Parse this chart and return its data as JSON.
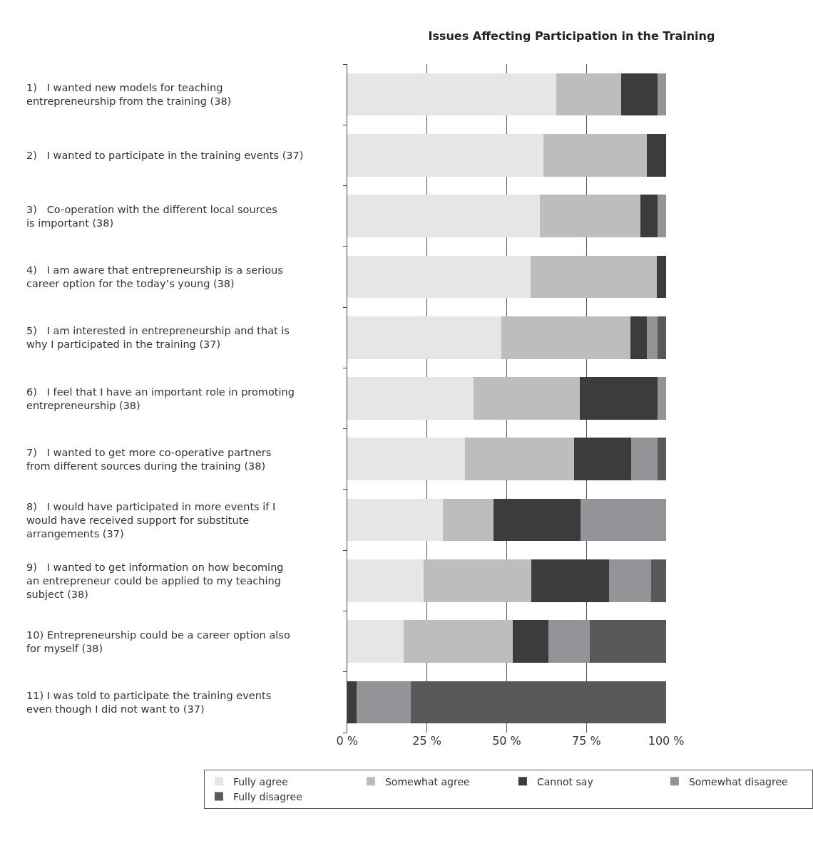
{
  "chart_data": {
    "type": "bar",
    "orientation": "horizontal",
    "stacked": true,
    "title": "Issues Affecting Participation in the Training",
    "categories": [
      "1)   I wanted new models for teaching\nentrepreneurship from the training (38)",
      "2)   I wanted to participate in the training events (37)",
      "3)   Co-operation with the different local sources\nis important (38)",
      "4)   I am aware that entrepreneurship is a serious\ncareer option for the today’s young (38)",
      "5)   I am interested in entrepreneurship and that is\nwhy I participated in the training (37)",
      "6)   I feel that I have an important role in promoting\nentrepreneurship (38)",
      "7)   I wanted to get more co-operative partners\nfrom different sources during the training (38)",
      "8)   I would have participated in more events if I\nwould have received support for substitute\narrangements (37)",
      "9)   I wanted to get information on how becoming\nan entrepreneur could be applied to my teaching\nsubject (38)",
      "10) Entrepreneurship could be a career option also\nfor myself (38)",
      "11) I was told to participate the training events\neven though I did not want to (37)"
    ],
    "series": [
      {
        "name": "Fully agree",
        "color": "#e5e6e8",
        "values": [
          65.5,
          61.5,
          60.3,
          57.4,
          48.4,
          39.5,
          37.0,
          29.9,
          24.0,
          17.8,
          0
        ]
      },
      {
        "name": "Somewhat agree",
        "color": "#bcbdbf",
        "values": [
          20.4,
          32.5,
          31.6,
          39.6,
          40.5,
          33.5,
          34.1,
          16.0,
          33.8,
          34.1,
          0
        ]
      },
      {
        "name": "Cannot say",
        "color": "#3c3c3c",
        "values": [
          11.4,
          6.0,
          5.3,
          3.0,
          5.1,
          24.2,
          18.0,
          27.3,
          24.3,
          11.1,
          3.0
        ]
      },
      {
        "name": "Somewhat disagree",
        "color": "#939497",
        "values": [
          2.7,
          0,
          2.8,
          0,
          3.3,
          2.8,
          8.2,
          26.8,
          13.1,
          13.1,
          16.9
        ]
      },
      {
        "name": "Fully disagree",
        "color": "#58595b",
        "values": [
          0,
          0,
          0,
          0,
          2.7,
          0,
          2.7,
          0,
          4.8,
          23.9,
          80.1
        ]
      }
    ],
    "xlim": [
      0,
      100
    ],
    "xticks": [
      {
        "value": 0,
        "label": "0 %"
      },
      {
        "value": 25,
        "label": "25 %"
      },
      {
        "value": 50,
        "label": "50 %"
      },
      {
        "value": 75,
        "label": "75 %"
      },
      {
        "value": 100,
        "label": "100 %"
      }
    ],
    "grid": "x",
    "legend": "bottom"
  }
}
